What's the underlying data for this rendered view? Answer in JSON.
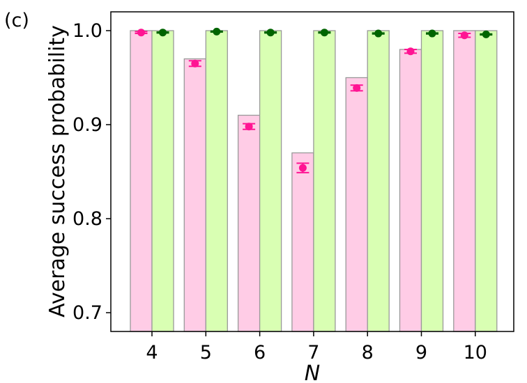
{
  "panel_label": "(c)",
  "colors": {
    "bar_a_fill": "#ffcce6",
    "bar_b_fill": "#d9ffb3",
    "bar_edge": "#999999",
    "marker_a": "#ff1493",
    "marker_b": "#006400",
    "axis": "#000000"
  },
  "chart_data": {
    "type": "bar",
    "title": "",
    "xlabel": "N",
    "ylabel": "Average success probability",
    "categories": [
      "4",
      "5",
      "6",
      "7",
      "8",
      "9",
      "10"
    ],
    "ylim": [
      0.68,
      1.02
    ],
    "yticks": [
      0.7,
      0.8,
      0.9,
      1.0
    ],
    "ytick_labels": [
      "0.7",
      "0.8",
      "0.9",
      "1.0"
    ],
    "grid": false,
    "series": [
      {
        "bars": [
          1.0,
          0.97,
          0.91,
          0.87,
          0.95,
          0.98,
          1.0
        ],
        "points": [
          0.998,
          0.965,
          0.898,
          0.854,
          0.939,
          0.978,
          0.995
        ],
        "errors": [
          0.001,
          0.003,
          0.003,
          0.005,
          0.003,
          0.002,
          0.002
        ]
      },
      {
        "bars": [
          1.0,
          1.0,
          1.0,
          1.0,
          1.0,
          1.0,
          1.0
        ],
        "points": [
          0.998,
          0.999,
          0.998,
          0.998,
          0.997,
          0.997,
          0.996
        ],
        "errors": [
          0.0005,
          0.0005,
          0.0005,
          0.0005,
          0.0005,
          0.0005,
          0.0005
        ]
      }
    ]
  }
}
